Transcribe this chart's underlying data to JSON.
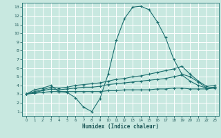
{
  "title": "",
  "xlabel": "Humidex (Indice chaleur)",
  "bg_color": "#c8e8e0",
  "grid_color": "#ffffff",
  "line_color": "#1a6e6e",
  "xlim": [
    -0.5,
    23.5
  ],
  "ylim": [
    0.5,
    13.5
  ],
  "xticks": [
    0,
    1,
    2,
    3,
    4,
    5,
    6,
    7,
    8,
    9,
    10,
    11,
    12,
    13,
    14,
    15,
    16,
    17,
    18,
    19,
    20,
    21,
    22,
    23
  ],
  "yticks": [
    1,
    2,
    3,
    4,
    5,
    6,
    7,
    8,
    9,
    10,
    11,
    12,
    13
  ],
  "line1_x": [
    0,
    1,
    2,
    3,
    4,
    5,
    6,
    7,
    8,
    9,
    10,
    11,
    12,
    13,
    14,
    15,
    16,
    17,
    18,
    19,
    20,
    21,
    22,
    23
  ],
  "line1_y": [
    3.0,
    3.5,
    3.7,
    4.0,
    3.3,
    3.2,
    2.6,
    1.5,
    1.0,
    2.5,
    5.3,
    9.2,
    11.7,
    13.0,
    13.1,
    12.7,
    11.3,
    9.5,
    7.0,
    5.3,
    5.0,
    4.4,
    3.7,
    3.8
  ],
  "line2_x": [
    0,
    1,
    2,
    3,
    4,
    5,
    6,
    7,
    8,
    9,
    10,
    11,
    12,
    13,
    14,
    15,
    16,
    17,
    18,
    19,
    20,
    21,
    22,
    23
  ],
  "line2_y": [
    3.0,
    3.3,
    3.5,
    3.8,
    3.7,
    3.8,
    4.0,
    4.1,
    4.2,
    4.3,
    4.5,
    4.7,
    4.8,
    5.0,
    5.1,
    5.3,
    5.5,
    5.7,
    5.9,
    6.2,
    5.3,
    4.5,
    3.9,
    4.0
  ],
  "line3_x": [
    0,
    1,
    2,
    3,
    4,
    5,
    6,
    7,
    8,
    9,
    10,
    11,
    12,
    13,
    14,
    15,
    16,
    17,
    18,
    19,
    20,
    21,
    22,
    23
  ],
  "line3_y": [
    3.0,
    3.2,
    3.4,
    3.6,
    3.5,
    3.6,
    3.7,
    3.8,
    3.8,
    3.9,
    4.1,
    4.2,
    4.3,
    4.4,
    4.5,
    4.6,
    4.7,
    4.8,
    5.0,
    5.2,
    4.5,
    4.0,
    3.7,
    3.8
  ],
  "line4_x": [
    0,
    1,
    2,
    3,
    4,
    5,
    6,
    7,
    8,
    9,
    10,
    11,
    12,
    13,
    14,
    15,
    16,
    17,
    18,
    19,
    20,
    21,
    22,
    23
  ],
  "line4_y": [
    3.0,
    3.1,
    3.2,
    3.3,
    3.3,
    3.3,
    3.3,
    3.3,
    3.3,
    3.3,
    3.4,
    3.4,
    3.5,
    3.5,
    3.5,
    3.5,
    3.6,
    3.6,
    3.7,
    3.7,
    3.6,
    3.6,
    3.6,
    3.7
  ]
}
